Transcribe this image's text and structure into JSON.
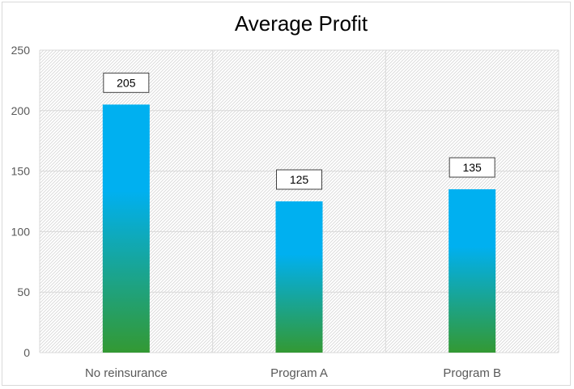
{
  "chart_data": {
    "type": "bar",
    "title": "Average Profit",
    "xlabel": "",
    "ylabel": "",
    "categories": [
      "No reinsurance",
      "Program A",
      "Program B"
    ],
    "values": [
      205,
      125,
      135
    ],
    "data_labels": [
      "205",
      "125",
      "135"
    ],
    "ylim": [
      0,
      250
    ],
    "yticks": [
      0,
      50,
      100,
      150,
      200,
      250
    ],
    "grid": true,
    "legend": "none",
    "colors": {
      "bar_top": "#00B0F0",
      "bar_bottom": "#339933",
      "grid": "#d9d9d9",
      "axis_text": "#595959"
    }
  }
}
